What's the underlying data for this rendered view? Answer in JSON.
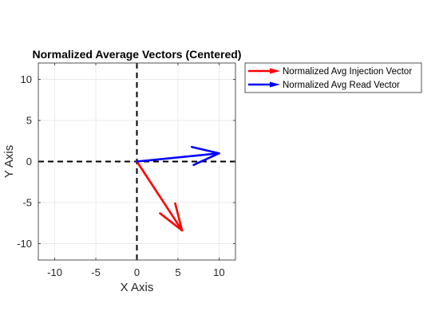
{
  "chart_data": {
    "type": "quiver",
    "title": "Normalized Average Vectors (Centered)",
    "xlabel": "X Axis",
    "ylabel": "Y Axis",
    "xlim": [
      -12,
      12
    ],
    "ylim": [
      -12,
      12
    ],
    "xticks": [
      -10,
      -5,
      0,
      5,
      10
    ],
    "yticks": [
      -10,
      -5,
      0,
      5,
      10
    ],
    "xtick_labels": [
      "-10",
      "-5",
      "0",
      "5",
      "10"
    ],
    "ytick_labels": [
      "-10",
      "-5",
      "0",
      "5",
      "10"
    ],
    "grid": true,
    "reference_lines": [
      {
        "orientation": "vertical",
        "value": 0,
        "style": "dashed",
        "color": "#000000"
      },
      {
        "orientation": "horizontal",
        "value": 0,
        "style": "dashed",
        "color": "#000000"
      }
    ],
    "series": [
      {
        "name": "Normalized Avg Injection Vector",
        "color": "#ff0000",
        "x0": 0,
        "y0": 0,
        "x1": 5.5,
        "y1": -8.4
      },
      {
        "name": "Normalized Avg Read Vector",
        "color": "#0000ff",
        "x0": 0,
        "y0": 0,
        "x1": 10,
        "y1": 1
      }
    ],
    "legend": {
      "position": "outside-top-right"
    }
  }
}
